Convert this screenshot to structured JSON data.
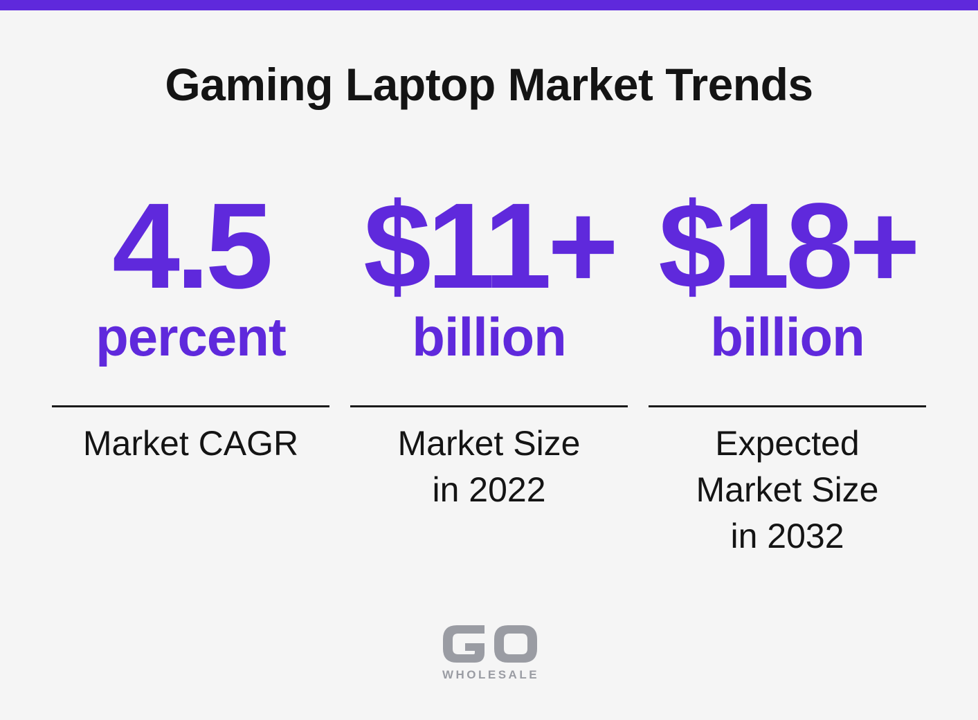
{
  "title": "Gaming Laptop Market Trends",
  "accent_color": "#5f29dc",
  "stats": [
    {
      "value": "4.5",
      "unit": "percent",
      "caption_lines": [
        "Market CAGR"
      ]
    },
    {
      "value": "$11+",
      "unit": "billion",
      "caption_lines": [
        "Market Size",
        "in 2022"
      ]
    },
    {
      "value": "$18+",
      "unit": "billion",
      "caption_lines": [
        "Expected",
        "Market Size",
        "in 2032"
      ]
    }
  ],
  "logo": {
    "mark": "GO",
    "text": "WHOLESALE",
    "color": "#9a9ca3"
  }
}
